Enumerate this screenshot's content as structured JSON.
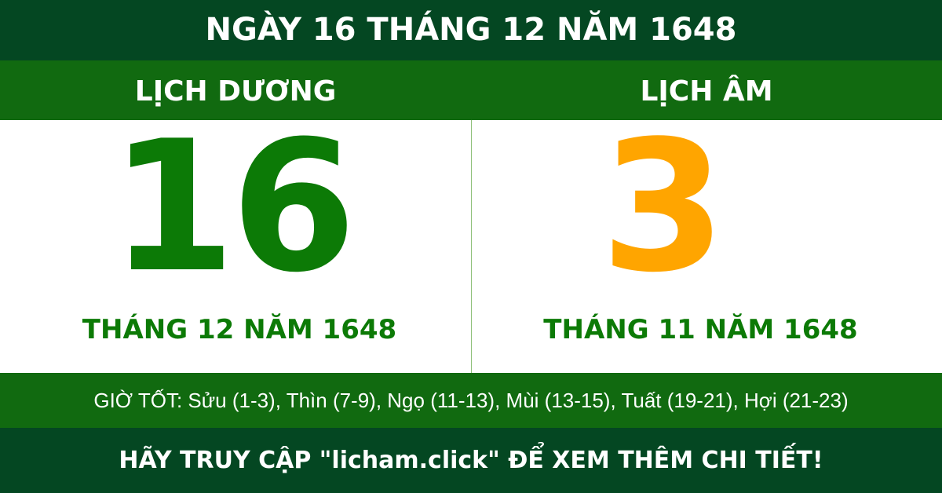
{
  "title": "NGÀY 16 THÁNG 12 NĂM 1648",
  "solar": {
    "header": "LỊCH DƯƠNG",
    "day": "16",
    "month_year": "THÁNG 12 NĂM 1648"
  },
  "lunar": {
    "header": "LỊCH ÂM",
    "day": "3",
    "month_year": "THÁNG 11 NĂM 1648"
  },
  "good_hours": "GIỜ TỐT: Sửu (1-3), Thìn (7-9), Ngọ (11-13), Mùi (13-15), Tuất (19-21), Hợi (21-23)",
  "cta": "HÃY TRUY CẬP \"licham.click\" ĐỂ XEM THÊM CHI TIẾT!",
  "colors": {
    "dark_green": "#044722",
    "green": "#116a10",
    "solar_day": "#0c7a06",
    "lunar_day": "#ffa500"
  }
}
